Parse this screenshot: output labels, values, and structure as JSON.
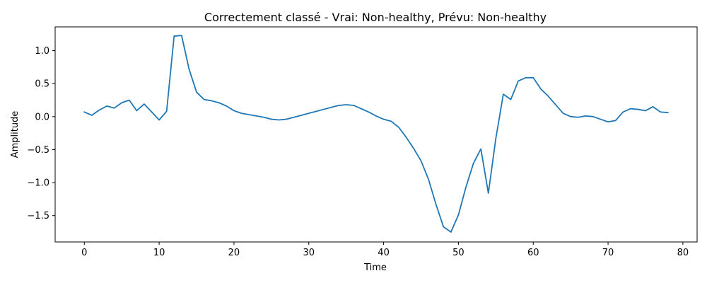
{
  "chart_data": {
    "type": "line",
    "title": "Correctement classé - Vrai: Non-healthy, Prévu: Non-healthy",
    "xlabel": "Time",
    "ylabel": "Amplitude",
    "xlim": [
      -3.9,
      81.9
    ],
    "ylim": [
      -1.9,
      1.36
    ],
    "xticks": [
      0,
      10,
      20,
      30,
      40,
      50,
      60,
      70,
      80
    ],
    "yticks": [
      -1.5,
      -1.0,
      -0.5,
      0.0,
      0.5,
      1.0
    ],
    "xtick_labels": [
      "0",
      "10",
      "20",
      "30",
      "40",
      "50",
      "60",
      "70",
      "80"
    ],
    "ytick_labels": [
      "−1.5",
      "−1.0",
      "−0.5",
      "0.0",
      "0.5",
      "1.0"
    ],
    "grid": false,
    "line_color": "#1f77b4",
    "series": [
      {
        "x": [
          0,
          1,
          2,
          3,
          4,
          5,
          6,
          7,
          8,
          9,
          10,
          11,
          12,
          13,
          14,
          15,
          16,
          17,
          18,
          19,
          20,
          21,
          22,
          23,
          24,
          25,
          26,
          27,
          28,
          29,
          30,
          31,
          32,
          33,
          34,
          35,
          36,
          37,
          38,
          39,
          40,
          41,
          42,
          43,
          44,
          45,
          46,
          47,
          48,
          49,
          50,
          51,
          52,
          53,
          54,
          55,
          56,
          57,
          58,
          59,
          60,
          61,
          62,
          63,
          64,
          65,
          66,
          67,
          68,
          69,
          70,
          71,
          72,
          73,
          74,
          75,
          76,
          77,
          78
        ],
        "y": [
          0.07,
          0.02,
          0.1,
          0.16,
          0.13,
          0.21,
          0.25,
          0.09,
          0.19,
          0.07,
          -0.05,
          0.08,
          1.22,
          1.23,
          0.72,
          0.37,
          0.26,
          0.24,
          0.21,
          0.16,
          0.09,
          0.05,
          0.03,
          0.01,
          -0.01,
          -0.04,
          -0.05,
          -0.04,
          -0.01,
          0.02,
          0.05,
          0.08,
          0.11,
          0.14,
          0.17,
          0.18,
          0.17,
          0.12,
          0.07,
          0.01,
          -0.04,
          -0.07,
          -0.16,
          -0.31,
          -0.48,
          -0.67,
          -0.95,
          -1.33,
          -1.67,
          -1.75,
          -1.49,
          -1.07,
          -0.71,
          -0.49,
          -1.16,
          -0.33,
          0.34,
          0.26,
          0.54,
          0.59,
          0.59,
          0.42,
          0.31,
          0.18,
          0.05,
          0.0,
          -0.01,
          0.01,
          0.0,
          -0.04,
          -0.08,
          -0.06,
          0.07,
          0.12,
          0.11,
          0.09,
          0.15,
          0.07,
          0.06
        ]
      }
    ]
  }
}
